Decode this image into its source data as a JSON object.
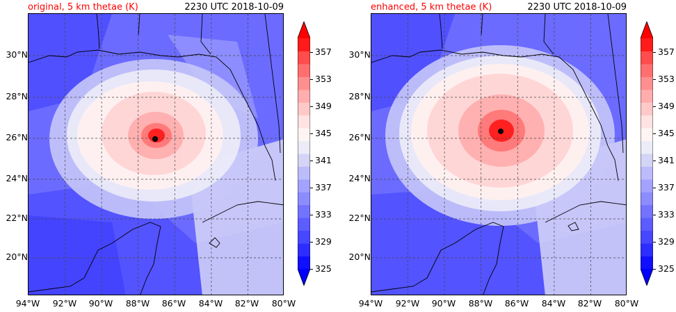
{
  "panels": [
    {
      "title": "original, 5 km thetae (K)",
      "time": "2230 UTC 2018-10-09",
      "title_color": "#ff0000",
      "storm_center": {
        "lon": -87.1,
        "lat": 26.0
      }
    },
    {
      "title": "enhanced, 5 km thetae (K)",
      "time": "2230 UTC 2018-10-09",
      "title_color": "#ff0000",
      "storm_center": {
        "lon": -86.95,
        "lat": 26.35
      }
    }
  ],
  "latitude_labels": [
    "30°N",
    "28°N",
    "26°N",
    "24°N",
    "22°N",
    "20°N"
  ],
  "longitude_labels": [
    "94°W",
    "92°W",
    "90°W",
    "88°W",
    "86°W",
    "84°W",
    "82°W",
    "80°W"
  ],
  "colorbar": {
    "unit": "K",
    "tick_labels": [
      "325",
      "329",
      "333",
      "337",
      "341",
      "345",
      "349",
      "353",
      "357"
    ],
    "levels": [
      325,
      327,
      329,
      331,
      333,
      335,
      337,
      339,
      341,
      343,
      345,
      347,
      349,
      351,
      353,
      355,
      357,
      359
    ],
    "colors": [
      "#1010ff",
      "#2d2dff",
      "#4747ff",
      "#5c5cff",
      "#7373ff",
      "#8c8cff",
      "#a3a3ff",
      "#bcbcfb",
      "#d4d4f7",
      "#ececf8",
      "#fff4f4",
      "#ffe3e3",
      "#ffc9c9",
      "#ffadad",
      "#ff8f8f",
      "#ff6f6f",
      "#ff4c4c",
      "#ff1b1b"
    ],
    "extend_low_color": "#0000ff",
    "extend_high_color": "#ff0000"
  }
}
